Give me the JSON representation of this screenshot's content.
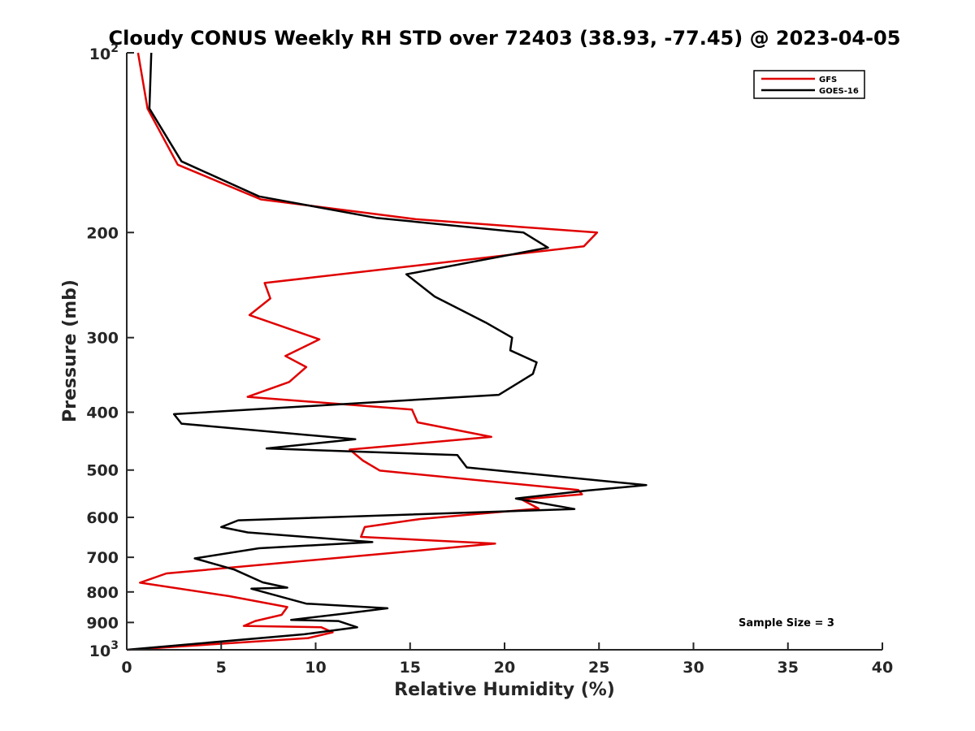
{
  "chart_data": {
    "type": "line",
    "title": "Cloudy CONUS Weekly RH STD over 72403 (38.93, -77.45) @ 2023-04-05",
    "xlabel": "Relative Humidity (%)",
    "ylabel": "Pressure (mb)",
    "xlim": [
      0,
      40
    ],
    "ylim": [
      100,
      1000
    ],
    "y_scale": "log",
    "y_reversed": true,
    "grid": false,
    "legend_position": "top-right",
    "x_ticks": [
      {
        "value": 0,
        "label": "0"
      },
      {
        "value": 5,
        "label": "5"
      },
      {
        "value": 10,
        "label": "10"
      },
      {
        "value": 15,
        "label": "15"
      },
      {
        "value": 20,
        "label": "20"
      },
      {
        "value": 25,
        "label": "25"
      },
      {
        "value": 30,
        "label": "30"
      },
      {
        "value": 35,
        "label": "35"
      },
      {
        "value": 40,
        "label": "40"
      }
    ],
    "y_ticks": [
      {
        "value": 200,
        "label": "200"
      },
      {
        "value": 300,
        "label": "300"
      },
      {
        "value": 400,
        "label": "400"
      },
      {
        "value": 500,
        "label": "500"
      },
      {
        "value": 600,
        "label": "600"
      },
      {
        "value": 700,
        "label": "700"
      },
      {
        "value": 800,
        "label": "800"
      },
      {
        "value": 900,
        "label": "900"
      }
    ],
    "y_power_ticks": [
      {
        "value": 100,
        "base": "10",
        "exp": "2"
      },
      {
        "value": 1000,
        "base": "10",
        "exp": "3"
      }
    ],
    "annotation": "Sample Size = 3",
    "series": [
      {
        "name": "GFS",
        "color": "#e00000",
        "x": [
          0.6,
          1.1,
          2.7,
          7.1,
          15.3,
          24.9,
          24.2,
          7.3,
          7.6,
          6.5,
          10.2,
          8.4,
          9.5,
          8.6,
          6.4,
          15.1,
          15.4,
          19.3,
          11.8,
          12.5,
          13.4,
          23.9,
          24.1,
          20.9,
          21.8,
          15.5,
          12.6,
          12.4,
          19.5,
          2.1,
          0.7,
          5.4,
          8.5,
          8.2,
          6.8,
          6.2,
          10.3,
          10.9,
          9.6,
          0.1
        ],
        "y": [
          100,
          124,
          154,
          176,
          190,
          200,
          211,
          243,
          258,
          275,
          302,
          322,
          336,
          356,
          377,
          396,
          416,
          440,
          462,
          482,
          501,
          540,
          549,
          560,
          580,
          604,
          623,
          647,
          664,
          745,
          772,
          813,
          848,
          874,
          895,
          912,
          917,
          935,
          956,
          1000
        ]
      },
      {
        "name": "GOES-16",
        "color": "#000000",
        "x": [
          1.3,
          1.2,
          2.9,
          7.0,
          13.2,
          21.0,
          22.3,
          14.8,
          16.3,
          19.0,
          20.4,
          20.3,
          21.7,
          21.5,
          19.7,
          2.5,
          2.9,
          12.1,
          7.4,
          17.5,
          18.0,
          27.5,
          24.4,
          20.6,
          23.7,
          5.9,
          5.0,
          6.4,
          13.0,
          7.0,
          3.6,
          5.7,
          7.2,
          8.5,
          6.6,
          9.5,
          13.8,
          11.6,
          8.7,
          11.2,
          12.2,
          9.4,
          0.0
        ],
        "y": [
          100,
          124,
          152,
          174,
          189,
          200,
          212,
          235,
          256,
          283,
          300,
          315,
          330,
          345,
          374,
          403,
          418,
          444,
          460,
          472,
          495,
          530,
          541,
          558,
          581,
          607,
          623,
          636,
          660,
          676,
          703,
          734,
          771,
          787,
          790,
          837,
          852,
          869,
          891,
          895,
          917,
          942,
          1000
        ]
      }
    ]
  }
}
